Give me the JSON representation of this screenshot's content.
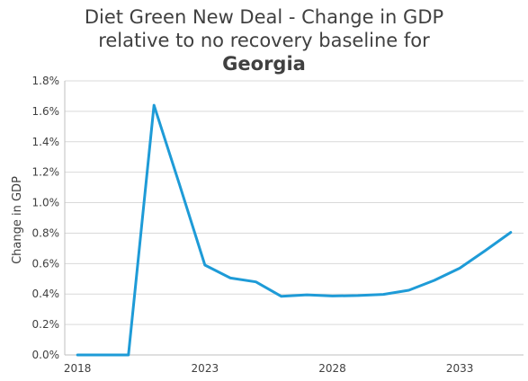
{
  "chart_data": {
    "type": "line",
    "title_lines": [
      "Diet Green New Deal - Change in GDP",
      "relative to no recovery baseline for"
    ],
    "title_bold": "Georgia",
    "xlabel": "",
    "ylabel": "Change in GDP",
    "x": [
      2018,
      2019,
      2020,
      2021,
      2022,
      2023,
      2024,
      2025,
      2026,
      2027,
      2028,
      2029,
      2030,
      2031,
      2032,
      2033,
      2034,
      2035
    ],
    "series": [
      {
        "values": [
          0.0,
          0.0,
          0.0,
          1.64,
          1.12,
          0.59,
          0.505,
          0.48,
          0.385,
          0.395,
          0.387,
          0.39,
          0.398,
          0.425,
          0.49,
          0.57,
          0.685,
          0.805
        ]
      }
    ],
    "xlim": [
      2017.5,
      2035.5
    ],
    "ylim": [
      0,
      1.8
    ],
    "xticks": [
      2018,
      2023,
      2028,
      2033
    ],
    "xtick_labels": [
      "2018",
      "2023",
      "2028",
      "2033"
    ],
    "yticks": [
      0,
      0.2,
      0.4,
      0.6,
      0.8,
      1.0,
      1.2,
      1.4,
      1.6,
      1.8
    ],
    "ytick_labels": [
      "0.0%",
      "0.2%",
      "0.4%",
      "0.6%",
      "0.8%",
      "1.0%",
      "1.2%",
      "1.4%",
      "1.6%",
      "1.8%"
    ],
    "grid": "horizontal",
    "line_color": "#1e9bd7",
    "grid_color": "#d9d9d9",
    "axis_color": "#bfbfbf"
  }
}
